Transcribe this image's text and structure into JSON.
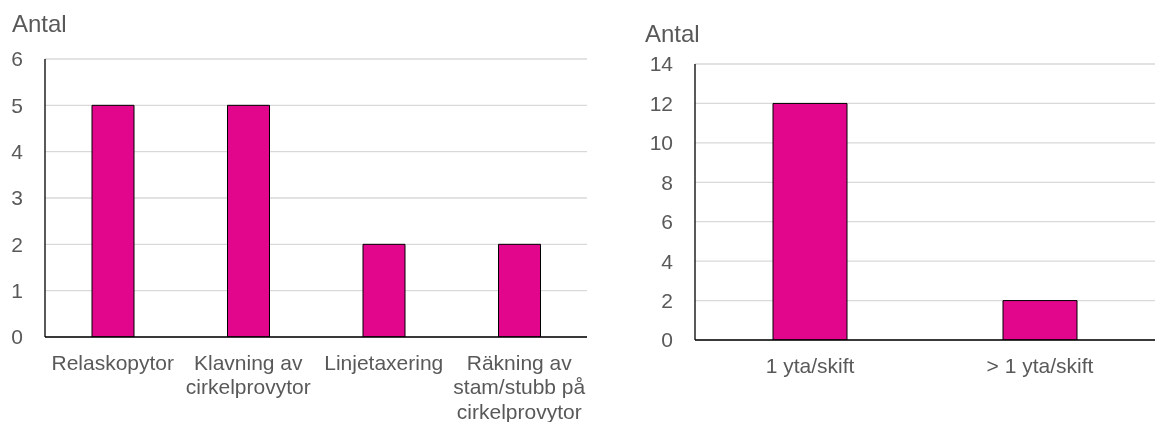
{
  "chart_data": [
    {
      "type": "bar",
      "ylabel": "Antal",
      "categories": [
        "Relaskopytor",
        "Klavning av cirkelprovytor",
        "Linjetaxering",
        "Räkning av stam/stubb på cirkelprovytor"
      ],
      "values": [
        5,
        5,
        2,
        2
      ],
      "color": "#e2068c",
      "ylim": [
        0,
        6
      ],
      "yticks": [
        0,
        1,
        2,
        3,
        4,
        5,
        6
      ],
      "grid": "y"
    },
    {
      "type": "bar",
      "ylabel": "Antal",
      "categories": [
        "1 yta/skift",
        "> 1 yta/skift"
      ],
      "values": [
        12,
        2
      ],
      "color": "#e2068c",
      "ylim": [
        0,
        14
      ],
      "yticks": [
        0,
        2,
        4,
        6,
        8,
        10,
        12,
        14
      ],
      "grid": "y"
    }
  ]
}
